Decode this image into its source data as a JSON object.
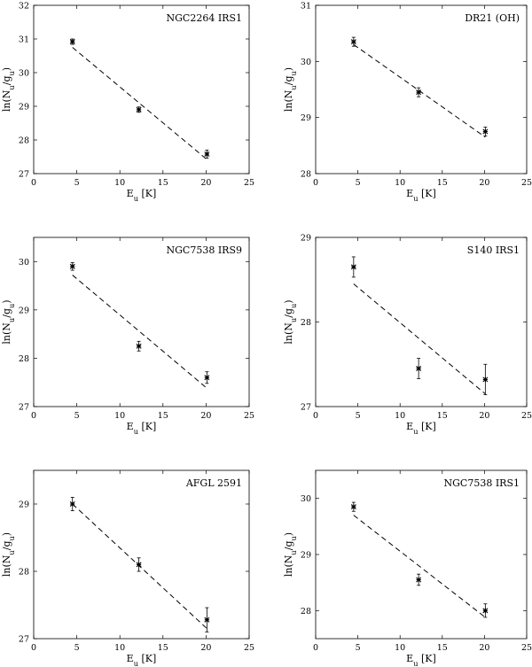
{
  "chart_data": [
    {
      "type": "scatter",
      "title": "NGC2264 IRS1",
      "xlabel": "E_u [K]",
      "ylabel": "ln(N_u/g_u)",
      "xlim": [
        0,
        25
      ],
      "ylim": [
        27,
        32
      ],
      "xticks": [
        0,
        5,
        10,
        15,
        20,
        25
      ],
      "yticks": [
        27,
        28,
        29,
        30,
        31,
        32
      ],
      "points": [
        {
          "x": 4.5,
          "y": 30.92,
          "err": 0.08
        },
        {
          "x": 12.2,
          "y": 28.9,
          "err": 0.08
        },
        {
          "x": 20.1,
          "y": 27.58,
          "err": 0.12
        }
      ],
      "fit": {
        "x": [
          4.5,
          20.1
        ],
        "y": [
          30.75,
          27.42
        ]
      }
    },
    {
      "type": "scatter",
      "title": "DR21 (OH)",
      "xlabel": "E_u [K]",
      "ylabel": "ln(N_u/g_u)",
      "xlim": [
        0,
        25
      ],
      "ylim": [
        28,
        31
      ],
      "xticks": [
        0,
        5,
        10,
        15,
        20,
        25
      ],
      "yticks": [
        28,
        29,
        30,
        31
      ],
      "points": [
        {
          "x": 4.5,
          "y": 30.35,
          "err": 0.08
        },
        {
          "x": 12.2,
          "y": 29.45,
          "err": 0.08
        },
        {
          "x": 20.1,
          "y": 28.75,
          "err": 0.08
        }
      ],
      "fit": {
        "x": [
          4.5,
          20.1
        ],
        "y": [
          30.3,
          28.65
        ]
      }
    },
    {
      "type": "scatter",
      "title": "NGC7538 IRS9",
      "xlabel": "E_u [K]",
      "ylabel": "ln(N_u/g_u)",
      "xlim": [
        0,
        25
      ],
      "ylim": [
        27,
        30.5
      ],
      "xticks": [
        0,
        5,
        10,
        15,
        20,
        25
      ],
      "yticks": [
        27,
        28,
        29,
        30
      ],
      "points": [
        {
          "x": 4.5,
          "y": 29.9,
          "err": 0.08
        },
        {
          "x": 12.2,
          "y": 28.25,
          "err": 0.1
        },
        {
          "x": 20.1,
          "y": 27.6,
          "err": 0.12
        }
      ],
      "fit": {
        "x": [
          4.5,
          20.1
        ],
        "y": [
          29.72,
          27.38
        ]
      }
    },
    {
      "type": "scatter",
      "title": "S140 IRS1",
      "xlabel": "E_u [K]",
      "ylabel": "ln(N_u/g_u)",
      "xlim": [
        0,
        25
      ],
      "ylim": [
        27,
        29
      ],
      "xticks": [
        0,
        5,
        10,
        15,
        20,
        25
      ],
      "yticks": [
        27,
        28,
        29
      ],
      "points": [
        {
          "x": 4.5,
          "y": 28.65,
          "err": 0.12
        },
        {
          "x": 12.2,
          "y": 27.45,
          "err": 0.12
        },
        {
          "x": 20.1,
          "y": 27.32,
          "err": 0.18
        }
      ],
      "fit": {
        "x": [
          4.5,
          20.1
        ],
        "y": [
          28.45,
          27.15
        ]
      }
    },
    {
      "type": "scatter",
      "title": "AFGL 2591",
      "xlabel": "E_u [K]",
      "ylabel": "ln(N_u/g_u)",
      "xlim": [
        0,
        25
      ],
      "ylim": [
        27,
        29.5
      ],
      "xticks": [
        0,
        5,
        10,
        15,
        20,
        25
      ],
      "yticks": [
        27,
        28,
        29
      ],
      "points": [
        {
          "x": 4.5,
          "y": 29.0,
          "err": 0.1
        },
        {
          "x": 12.2,
          "y": 28.1,
          "err": 0.1
        },
        {
          "x": 20.1,
          "y": 27.28,
          "err": 0.18
        }
      ],
      "fit": {
        "x": [
          4.5,
          20.1
        ],
        "y": [
          29.0,
          27.15
        ]
      }
    },
    {
      "type": "scatter",
      "title": "NGC7538 IRS1",
      "xlabel": "E_u [K]",
      "ylabel": "ln(N_u/g_u)",
      "xlim": [
        0,
        25
      ],
      "ylim": [
        27.5,
        30.5
      ],
      "xticks": [
        0,
        5,
        10,
        15,
        20,
        25
      ],
      "yticks": [
        28,
        29,
        30
      ],
      "points": [
        {
          "x": 4.5,
          "y": 29.85,
          "err": 0.08
        },
        {
          "x": 12.2,
          "y": 28.55,
          "err": 0.1
        },
        {
          "x": 20.1,
          "y": 28.0,
          "err": 0.12
        }
      ],
      "fit": {
        "x": [
          4.5,
          20.1
        ],
        "y": [
          29.7,
          27.88
        ]
      }
    }
  ]
}
